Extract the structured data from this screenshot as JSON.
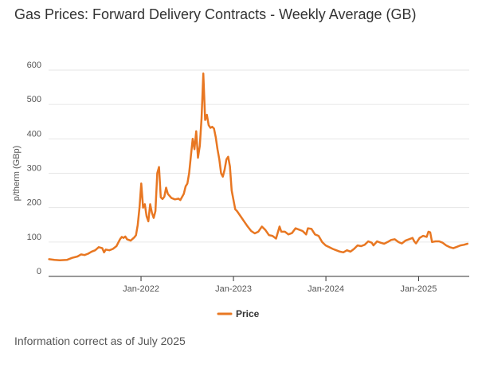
{
  "page": {
    "title": "Gas Prices: Forward Delivery Contracts - Weekly Average (GB)",
    "footer": "Information correct as of July 2025"
  },
  "colors": {
    "line": "#e87722",
    "grid": "#e6e6e6",
    "axis": "#333333",
    "text": "#555555"
  },
  "chart_data": {
    "type": "line",
    "title": "Gas Prices: Forward Delivery Contracts - Weekly Average (GB)",
    "ylabel": "p/therm (GBp)",
    "xlabel": "",
    "ylim": [
      0,
      600
    ],
    "xlim": [
      "2021-01-01",
      "2025-07-20"
    ],
    "yticks": [
      0,
      100,
      200,
      300,
      400,
      500,
      600
    ],
    "xticks": [
      {
        "date": "2022-01-01",
        "label": "Jan-2022"
      },
      {
        "date": "2023-01-01",
        "label": "Jan-2023"
      },
      {
        "date": "2024-01-01",
        "label": "Jan-2024"
      },
      {
        "date": "2025-01-01",
        "label": "Jan-2025"
      }
    ],
    "grid": true,
    "legend": "bottom",
    "series": [
      {
        "name": "Price",
        "points": [
          [
            "2021-01-03",
            50
          ],
          [
            "2021-01-24",
            48
          ],
          [
            "2021-02-14",
            47
          ],
          [
            "2021-03-14",
            48
          ],
          [
            "2021-04-04",
            54
          ],
          [
            "2021-04-25",
            58
          ],
          [
            "2021-05-09",
            64
          ],
          [
            "2021-05-23",
            62
          ],
          [
            "2021-06-06",
            66
          ],
          [
            "2021-06-20",
            72
          ],
          [
            "2021-07-04",
            76
          ],
          [
            "2021-07-18",
            85
          ],
          [
            "2021-08-01",
            82
          ],
          [
            "2021-08-08",
            70
          ],
          [
            "2021-08-15",
            78
          ],
          [
            "2021-08-29",
            76
          ],
          [
            "2021-09-12",
            80
          ],
          [
            "2021-09-26",
            88
          ],
          [
            "2021-10-10",
            108
          ],
          [
            "2021-10-17",
            115
          ],
          [
            "2021-10-24",
            112
          ],
          [
            "2021-10-31",
            116
          ],
          [
            "2021-11-07",
            108
          ],
          [
            "2021-11-21",
            104
          ],
          [
            "2021-12-05",
            113
          ],
          [
            "2021-12-12",
            120
          ],
          [
            "2021-12-19",
            150
          ],
          [
            "2021-12-26",
            200
          ],
          [
            "2022-01-02",
            270
          ],
          [
            "2022-01-09",
            200
          ],
          [
            "2022-01-16",
            210
          ],
          [
            "2022-01-23",
            175
          ],
          [
            "2022-01-30",
            160
          ],
          [
            "2022-02-06",
            210
          ],
          [
            "2022-02-13",
            185
          ],
          [
            "2022-02-20",
            170
          ],
          [
            "2022-02-27",
            190
          ],
          [
            "2022-03-06",
            300
          ],
          [
            "2022-03-13",
            318
          ],
          [
            "2022-03-20",
            230
          ],
          [
            "2022-03-27",
            225
          ],
          [
            "2022-04-03",
            232
          ],
          [
            "2022-04-10",
            258
          ],
          [
            "2022-04-17",
            240
          ],
          [
            "2022-05-01",
            228
          ],
          [
            "2022-05-15",
            224
          ],
          [
            "2022-05-29",
            226
          ],
          [
            "2022-06-05",
            222
          ],
          [
            "2022-06-19",
            240
          ],
          [
            "2022-06-26",
            262
          ],
          [
            "2022-07-03",
            270
          ],
          [
            "2022-07-10",
            300
          ],
          [
            "2022-07-17",
            350
          ],
          [
            "2022-07-24",
            400
          ],
          [
            "2022-07-31",
            370
          ],
          [
            "2022-08-07",
            422
          ],
          [
            "2022-08-14",
            345
          ],
          [
            "2022-08-21",
            380
          ],
          [
            "2022-08-28",
            460
          ],
          [
            "2022-09-04",
            590
          ],
          [
            "2022-09-11",
            455
          ],
          [
            "2022-09-18",
            470
          ],
          [
            "2022-09-25",
            440
          ],
          [
            "2022-10-02",
            432
          ],
          [
            "2022-10-09",
            435
          ],
          [
            "2022-10-16",
            430
          ],
          [
            "2022-10-23",
            405
          ],
          [
            "2022-10-30",
            370
          ],
          [
            "2022-11-06",
            340
          ],
          [
            "2022-11-13",
            300
          ],
          [
            "2022-11-20",
            290
          ],
          [
            "2022-11-27",
            310
          ],
          [
            "2022-12-04",
            340
          ],
          [
            "2022-12-11",
            348
          ],
          [
            "2022-12-18",
            320
          ],
          [
            "2022-12-25",
            250
          ],
          [
            "2023-01-08",
            195
          ],
          [
            "2023-01-15",
            190
          ],
          [
            "2023-01-29",
            175
          ],
          [
            "2023-02-12",
            160
          ],
          [
            "2023-02-26",
            145
          ],
          [
            "2023-03-12",
            132
          ],
          [
            "2023-03-26",
            125
          ],
          [
            "2023-04-09",
            130
          ],
          [
            "2023-04-23",
            145
          ],
          [
            "2023-05-07",
            135
          ],
          [
            "2023-05-21",
            120
          ],
          [
            "2023-06-04",
            118
          ],
          [
            "2023-06-18",
            110
          ],
          [
            "2023-07-02",
            145
          ],
          [
            "2023-07-09",
            130
          ],
          [
            "2023-07-23",
            130
          ],
          [
            "2023-08-06",
            122
          ],
          [
            "2023-08-20",
            126
          ],
          [
            "2023-09-03",
            140
          ],
          [
            "2023-09-17",
            136
          ],
          [
            "2023-10-01",
            132
          ],
          [
            "2023-10-15",
            122
          ],
          [
            "2023-10-22",
            140
          ],
          [
            "2023-11-05",
            138
          ],
          [
            "2023-11-19",
            122
          ],
          [
            "2023-12-03",
            118
          ],
          [
            "2023-12-17",
            100
          ],
          [
            "2023-12-31",
            90
          ],
          [
            "2024-01-14",
            85
          ],
          [
            "2024-01-28",
            80
          ],
          [
            "2024-02-11",
            76
          ],
          [
            "2024-02-25",
            72
          ],
          [
            "2024-03-10",
            70
          ],
          [
            "2024-03-24",
            76
          ],
          [
            "2024-04-07",
            72
          ],
          [
            "2024-04-21",
            80
          ],
          [
            "2024-05-05",
            90
          ],
          [
            "2024-05-19",
            88
          ],
          [
            "2024-06-02",
            92
          ],
          [
            "2024-06-16",
            102
          ],
          [
            "2024-06-30",
            98
          ],
          [
            "2024-07-07",
            90
          ],
          [
            "2024-07-21",
            102
          ],
          [
            "2024-08-04",
            98
          ],
          [
            "2024-08-18",
            95
          ],
          [
            "2024-09-01",
            100
          ],
          [
            "2024-09-15",
            106
          ],
          [
            "2024-09-29",
            108
          ],
          [
            "2024-10-13",
            100
          ],
          [
            "2024-10-27",
            96
          ],
          [
            "2024-11-10",
            104
          ],
          [
            "2024-11-24",
            108
          ],
          [
            "2024-12-08",
            112
          ],
          [
            "2024-12-15",
            102
          ],
          [
            "2024-12-22",
            96
          ],
          [
            "2025-01-05",
            112
          ],
          [
            "2025-01-19",
            118
          ],
          [
            "2025-02-02",
            115
          ],
          [
            "2025-02-09",
            130
          ],
          [
            "2025-02-16",
            128
          ],
          [
            "2025-02-23",
            100
          ],
          [
            "2025-03-09",
            102
          ],
          [
            "2025-03-23",
            102
          ],
          [
            "2025-04-06",
            98
          ],
          [
            "2025-04-20",
            90
          ],
          [
            "2025-05-04",
            85
          ],
          [
            "2025-05-18",
            82
          ],
          [
            "2025-06-01",
            86
          ],
          [
            "2025-06-15",
            90
          ],
          [
            "2025-06-29",
            92
          ],
          [
            "2025-07-13",
            95
          ]
        ]
      }
    ]
  }
}
